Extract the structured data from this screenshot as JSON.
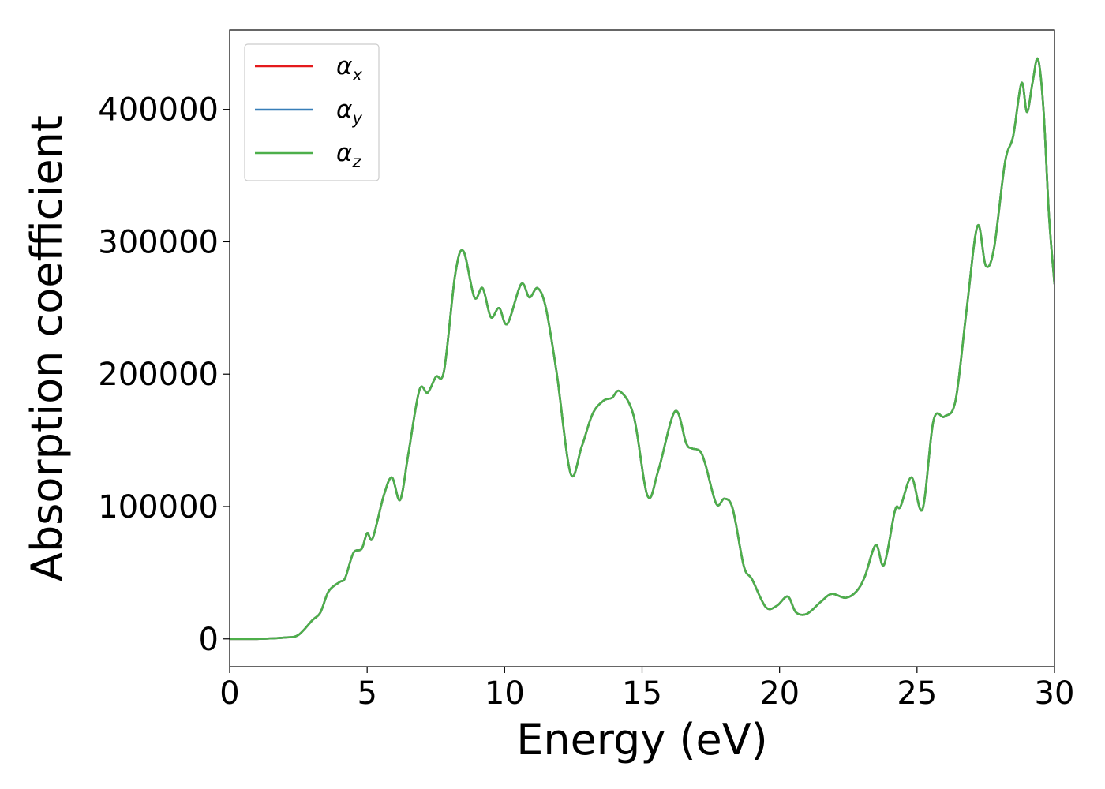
{
  "chart_data": {
    "type": "line",
    "title": "",
    "xlabel": "Energy (eV)",
    "ylabel": "Absorption coefficient",
    "xlim": [
      0,
      30
    ],
    "ylim": [
      -21000,
      460000
    ],
    "xticks": [
      0,
      5,
      10,
      15,
      20,
      25,
      30
    ],
    "yticks": [
      0,
      100000,
      200000,
      300000,
      400000
    ],
    "xtick_labels": [
      "0",
      "5",
      "10",
      "15",
      "20",
      "25",
      "30"
    ],
    "ytick_labels": [
      "0",
      "100000",
      "200000",
      "300000",
      "400000"
    ],
    "grid": false,
    "legend_position": "top-left",
    "x": [
      0,
      1,
      2,
      2.5,
      3,
      3.3,
      3.6,
      4,
      4.2,
      4.5,
      4.8,
      5,
      5.2,
      5.6,
      5.9,
      6.2,
      6.5,
      6.9,
      7.2,
      7.5,
      7.8,
      8.2,
      8.5,
      8.9,
      9.2,
      9.5,
      9.8,
      10.1,
      10.6,
      10.9,
      11.2,
      11.5,
      11.9,
      12.4,
      12.8,
      13.2,
      13.6,
      13.9,
      14.2,
      14.7,
      15.2,
      15.6,
      16.2,
      16.6,
      16.8,
      17.1,
      17.3,
      17.7,
      18,
      18.3,
      18.7,
      19,
      19.5,
      19.9,
      20.3,
      20.6,
      21,
      21.5,
      21.9,
      22.4,
      22.8,
      23.1,
      23.5,
      23.8,
      24.2,
      24.4,
      24.8,
      25.2,
      25.6,
      26,
      26.4,
      26.8,
      27.2,
      27.5,
      27.8,
      28.2,
      28.5,
      28.8,
      29,
      29.2,
      29.4,
      29.6,
      29.8,
      30
    ],
    "series": [
      {
        "name": "α_x",
        "color": "#e41a1c",
        "values": [
          0,
          0,
          1000,
          3000,
          14000,
          20000,
          36000,
          43000,
          46000,
          65000,
          68000,
          80000,
          76000,
          108000,
          122000,
          105000,
          140000,
          188000,
          186000,
          198000,
          203000,
          275000,
          293000,
          258000,
          265000,
          243000,
          250000,
          238000,
          268000,
          258000,
          265000,
          250000,
          200000,
          125000,
          145000,
          170000,
          180000,
          182000,
          187000,
          168000,
          108000,
          128000,
          172000,
          148000,
          144000,
          142000,
          132000,
          102000,
          106000,
          98000,
          55000,
          45000,
          24000,
          25000,
          32000,
          20000,
          19000,
          28000,
          34000,
          31000,
          36000,
          47000,
          71000,
          56000,
          97000,
          100000,
          122000,
          98000,
          165000,
          168000,
          180000,
          248000,
          312000,
          282000,
          295000,
          360000,
          380000,
          420000,
          398000,
          420000,
          438000,
          400000,
          320000,
          268000
        ]
      },
      {
        "name": "α_y",
        "color": "#377eb8",
        "values": [
          0,
          0,
          1000,
          3000,
          14000,
          20000,
          36000,
          43000,
          46000,
          65000,
          68000,
          80000,
          76000,
          108000,
          122000,
          105000,
          140000,
          188000,
          186000,
          198000,
          203000,
          275000,
          293000,
          258000,
          265000,
          243000,
          250000,
          238000,
          268000,
          258000,
          265000,
          250000,
          200000,
          125000,
          145000,
          170000,
          180000,
          182000,
          187000,
          168000,
          108000,
          128000,
          172000,
          148000,
          144000,
          142000,
          132000,
          102000,
          106000,
          98000,
          55000,
          45000,
          24000,
          25000,
          32000,
          20000,
          19000,
          28000,
          34000,
          31000,
          36000,
          47000,
          71000,
          56000,
          97000,
          100000,
          122000,
          98000,
          165000,
          168000,
          180000,
          248000,
          312000,
          282000,
          295000,
          360000,
          380000,
          420000,
          398000,
          420000,
          438000,
          400000,
          320000,
          268000
        ]
      },
      {
        "name": "α_z",
        "color": "#4daf4a",
        "values": [
          0,
          0,
          1000,
          3000,
          14000,
          20000,
          36000,
          43000,
          46000,
          65000,
          68000,
          80000,
          76000,
          108000,
          122000,
          105000,
          140000,
          188000,
          186000,
          198000,
          203000,
          275000,
          293000,
          258000,
          265000,
          243000,
          250000,
          238000,
          268000,
          258000,
          265000,
          250000,
          200000,
          125000,
          145000,
          170000,
          180000,
          182000,
          187000,
          168000,
          108000,
          128000,
          172000,
          148000,
          144000,
          142000,
          132000,
          102000,
          106000,
          98000,
          55000,
          45000,
          24000,
          25000,
          32000,
          20000,
          19000,
          28000,
          34000,
          31000,
          36000,
          47000,
          71000,
          56000,
          97000,
          100000,
          122000,
          98000,
          165000,
          168000,
          180000,
          248000,
          312000,
          282000,
          295000,
          360000,
          380000,
          420000,
          398000,
          420000,
          438000,
          400000,
          320000,
          268000
        ]
      }
    ],
    "legend": [
      {
        "symbol": "α",
        "sub": "x",
        "color": "#e41a1c"
      },
      {
        "symbol": "α",
        "sub": "y",
        "color": "#377eb8"
      },
      {
        "symbol": "α",
        "sub": "z",
        "color": "#4daf4a"
      }
    ]
  }
}
